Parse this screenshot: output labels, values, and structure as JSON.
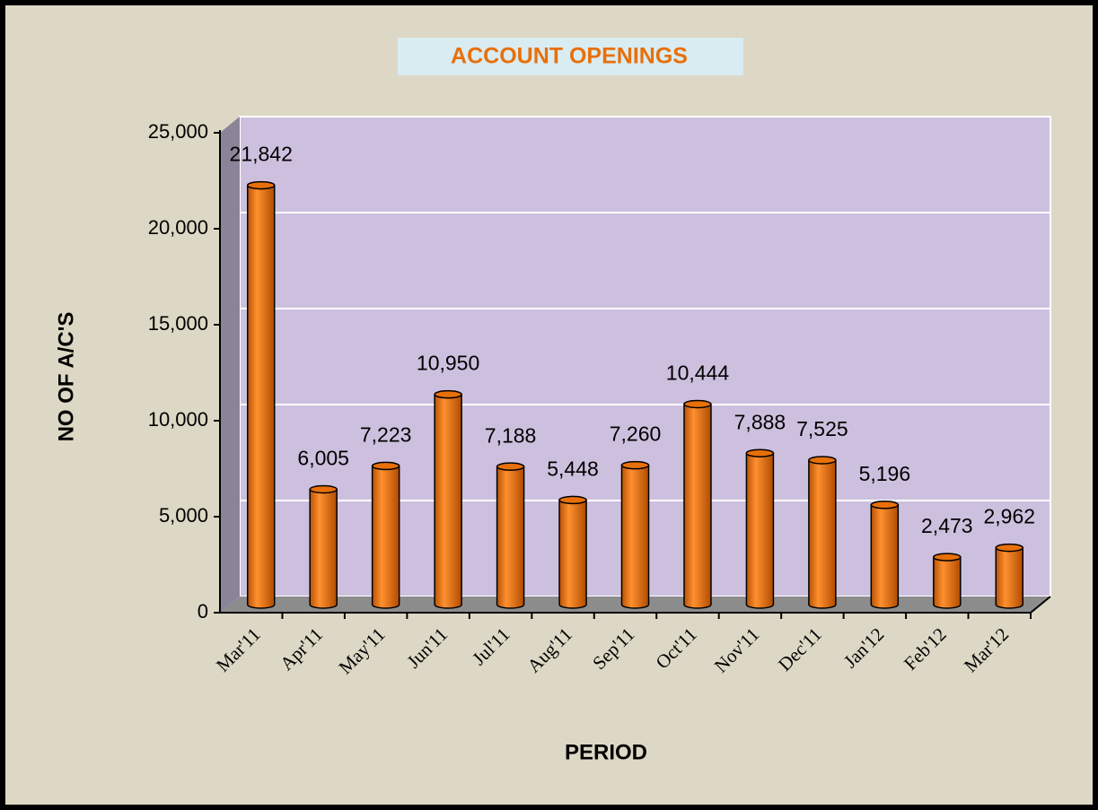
{
  "chart_data": {
    "type": "bar",
    "title": "ACCOUNT OPENINGS",
    "xlabel": "PERIOD",
    "ylabel": "NO OF A/C'S",
    "categories": [
      "Mar'11",
      "Apr'11",
      "May'11",
      "Jun'11",
      "Jul'11",
      "Aug'11",
      "Sep'11",
      "Oct'11",
      "Nov'11",
      "Dec'11",
      "Jan'12",
      "Feb'12",
      "Mar'12"
    ],
    "values": [
      21842,
      6005,
      7223,
      10950,
      7188,
      5448,
      7260,
      10444,
      7888,
      7525,
      5196,
      2473,
      2962
    ],
    "value_labels": [
      "21,842",
      "6,005",
      "7,223",
      "10,950",
      "7,188",
      "5,448",
      "7,260",
      "10,444",
      "7,888",
      "7,525",
      "5,196",
      "2,473",
      "2,962"
    ],
    "color": "#e8700a",
    "ylim": [
      0,
      25000
    ],
    "yticks": [
      0,
      {
        "value": 5000,
        "label": "5,000"
      },
      {
        "value": 10000,
        "label": "10,000"
      },
      {
        "value": 15000,
        "label": "15,000"
      },
      {
        "value": 20000,
        "label": "20,000"
      },
      {
        "value": 25000,
        "label": "25,000"
      }
    ],
    "grid": true
  }
}
